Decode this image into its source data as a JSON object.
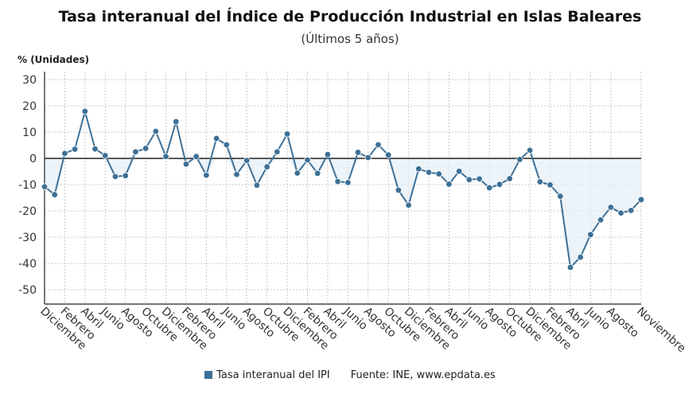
{
  "chart_data": {
    "type": "line",
    "title": "Tasa interanual del Índice de Producción Industrial en Islas Baleares",
    "subtitle": "(Últimos 5 años)",
    "ylabel": "% (Unidades)",
    "xlabel": "",
    "ylim": [
      -55,
      30
    ],
    "yticks": [
      30,
      20,
      10,
      0,
      -10,
      -20,
      -30,
      -40,
      -50
    ],
    "grid": true,
    "legend_position": "bottom",
    "x_tick_labels": [
      "Diciembre",
      "Febrero",
      "Abril",
      "Junio",
      "Agosto",
      "Octubre",
      "Diciembre",
      "Febrero",
      "Abril",
      "Junio",
      "Agosto",
      "Octubre",
      "Diciembre",
      "Febrero",
      "Abril",
      "Junio",
      "Agosto",
      "Octubre",
      "Diciembre",
      "Febrero",
      "Abril",
      "Junio",
      "Agosto",
      "Octubre",
      "Diciembre",
      "Febrero",
      "Abril",
      "Junio",
      "Agosto",
      "Noviembre"
    ],
    "series": [
      {
        "name": "Tasa interanual del IPI",
        "color": "#3d7096",
        "values": [
          -10.8,
          -13.8,
          1.9,
          3.5,
          17.9,
          3.6,
          1.1,
          -6.9,
          -6.6,
          2.5,
          3.8,
          10.3,
          0.7,
          14.0,
          -2.2,
          0.7,
          -6.4,
          7.6,
          5.2,
          -6.1,
          -0.8,
          -10.2,
          -3.2,
          2.5,
          9.3,
          -5.6,
          -0.6,
          -5.7,
          1.5,
          -8.8,
          -9.2,
          2.3,
          0.3,
          5.2,
          1.3,
          -12.1,
          -17.8,
          -4.0,
          -5.3,
          -5.9,
          -9.8,
          -4.9,
          -8.1,
          -7.8,
          -11.2,
          -9.9,
          -7.7,
          -0.4,
          3.1,
          -8.9,
          -10.1,
          -14.4,
          -41.5,
          -37.6,
          -29.0,
          -23.4,
          -18.6,
          -20.8,
          -19.8,
          -15.7
        ]
      }
    ]
  },
  "legend": {
    "series_label": "Tasa interanual del IPI",
    "source": "Fuente: INE, www.epdata.es"
  }
}
